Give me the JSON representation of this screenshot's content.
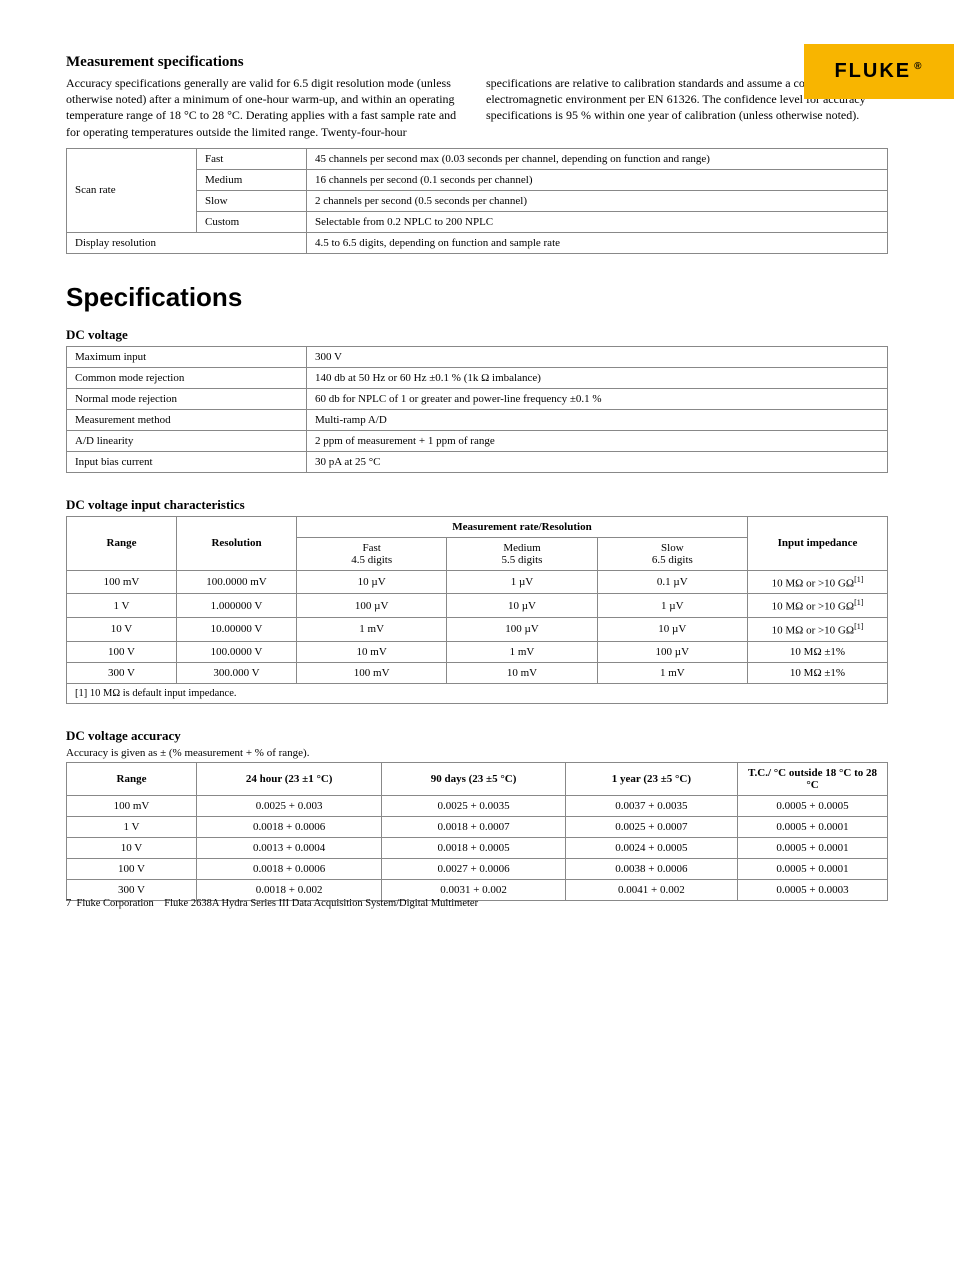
{
  "logo": {
    "text": "FLUKE",
    "reg": "®"
  },
  "measSpec": {
    "title": "Measurement specifications",
    "intro": "Accuracy specifications generally are valid for 6.5 digit resolution mode (unless otherwise noted) after a minimum of one-hour warm-up, and within an operating temperature range of 18 °C to 28 °C. Derating applies with a fast sample rate and for operating temperatures outside the limited range. Twenty-four-hour specifications are relative to calibration standards and assume a controlled electromagnetic environment per EN 61326. The confidence level for accuracy specifications is 95 % within one year of calibration (unless otherwise noted)."
  },
  "scanTable": {
    "scanRateLabel": "Scan rate",
    "rows": [
      {
        "rate": "Fast",
        "desc": "45 channels per second max (0.03 seconds per channel, depending on function and range)"
      },
      {
        "rate": "Medium",
        "desc": "16 channels per second (0.1 seconds per channel)"
      },
      {
        "rate": "Slow",
        "desc": "2 channels per second (0.5 seconds per channel)"
      },
      {
        "rate": "Custom",
        "desc": "Selectable from 0.2 NPLC to 200  NPLC"
      }
    ],
    "dispResLabel": "Display resolution",
    "dispResDesc": "4.5 to 6.5 digits, depending on function and sample rate"
  },
  "specTitle": "Specifications",
  "dcv": {
    "title": "DC voltage",
    "rows": [
      {
        "k": "Maximum input",
        "v": "300 V"
      },
      {
        "k": "Common mode rejection",
        "v": "140 db at 50 Hz or 60 Hz ±0.1 % (1k Ω imbalance)"
      },
      {
        "k": "Normal mode rejection",
        "v": "60 db for NPLC of 1 or greater and power-line frequency ±0.1 %"
      },
      {
        "k": "Measurement method",
        "v": "Multi-ramp A/D"
      },
      {
        "k": "A/D linearity",
        "v": "2 ppm of measurement + 1 ppm of range"
      },
      {
        "k": "Input bias current",
        "v": "30 pA at 25 °C"
      }
    ]
  },
  "dcvChar": {
    "title": "DC voltage input characteristics",
    "headers": {
      "range": "Range",
      "resolution": "Resolution",
      "measRate": "Measurement rate/Resolution",
      "fast": "Fast",
      "fastSub": "4.5 digits",
      "med": "Medium",
      "medSub": "5.5 digits",
      "slow": "Slow",
      "slowSub": "6.5  digits",
      "imp": "Input impedance"
    },
    "rows": [
      {
        "range": "100 mV",
        "res": "100.0000 mV",
        "fast": "10 µV",
        "med": "1 µV",
        "slow": "0.1 µV",
        "imp": "10 MΩ or >10 GΩ",
        "note": "[1]"
      },
      {
        "range": "1 V",
        "res": "1.000000 V",
        "fast": "100 µV",
        "med": "10 µV",
        "slow": "1 µV",
        "imp": "10 MΩ or >10 GΩ",
        "note": "[1]"
      },
      {
        "range": "10 V",
        "res": "10.00000 V",
        "fast": "1 mV",
        "med": "100 µV",
        "slow": "10 µV",
        "imp": "10 MΩ or >10 GΩ",
        "note": "[1]"
      },
      {
        "range": "100 V",
        "res": "100.0000 V",
        "fast": "10 mV",
        "med": "1 mV",
        "slow": "100 µV",
        "imp": "10 MΩ ±1%",
        "note": ""
      },
      {
        "range": "300 V",
        "res": "300.000 V",
        "fast": "100 mV",
        "med": "10 mV",
        "slow": "1 mV",
        "imp": "10 MΩ ±1%",
        "note": ""
      }
    ],
    "footnote": "[1] 10 MΩ is default input impedance."
  },
  "dcvAcc": {
    "title": "DC voltage accuracy",
    "note": "Accuracy is given as ± (% measurement + % of range).",
    "headers": {
      "range": "Range",
      "h24": "24 hour (23 ±1 °C)",
      "d90": "90 days (23 ±5 °C)",
      "y1": "1 year (23 ±5 °C)",
      "tc": "T.C./ °C outside 18 °C to 28 °C"
    },
    "rows": [
      {
        "range": "100 mV",
        "h24": "0.0025 + 0.003",
        "d90": "0.0025 + 0.0035",
        "y1": "0.0037 + 0.0035",
        "tc": "0.0005 + 0.0005"
      },
      {
        "range": "1 V",
        "h24": "0.0018 + 0.0006",
        "d90": "0.0018 + 0.0007",
        "y1": "0.0025 + 0.0007",
        "tc": "0.0005 + 0.0001"
      },
      {
        "range": "10 V",
        "h24": "0.0013 + 0.0004",
        "d90": "0.0018 + 0.0005",
        "y1": "0.0024 + 0.0005",
        "tc": "0.0005 + 0.0001"
      },
      {
        "range": "100 V",
        "h24": "0.0018 + 0.0006",
        "d90": "0.0027 + 0.0006",
        "y1": "0.0038 + 0.0006",
        "tc": "0.0005 + 0.0001"
      },
      {
        "range": "300 V",
        "h24": "0.0018 + 0.002",
        "d90": "0.0031 + 0.002",
        "y1": "0.0041 + 0.002",
        "tc": "0.0005 + 0.0003"
      }
    ]
  },
  "footer": {
    "page": "7",
    "company": "Fluke Corporation",
    "product": "Fluke 2638A Hydra Series III Data Acquisition System/Digital Multimeter"
  }
}
